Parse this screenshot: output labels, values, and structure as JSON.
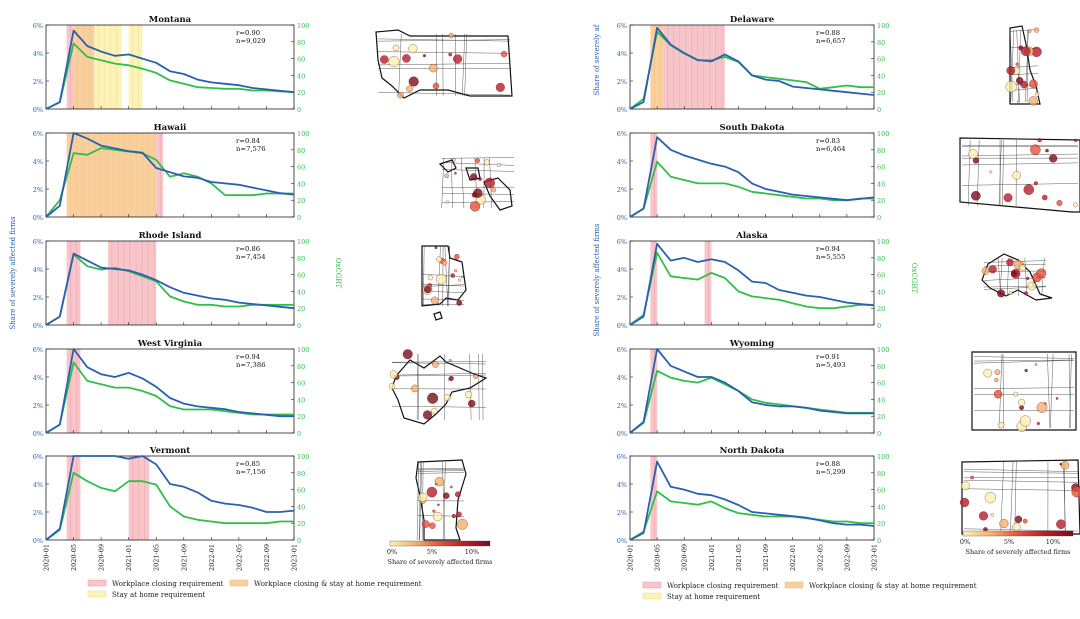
{
  "legend": {
    "closing": "Workplace closing requirement",
    "both": "Workplace closing & stay at home requirement",
    "stay": "Stay at home requirement",
    "colors": {
      "closing": "#f7c6cb",
      "both": "#f9cf9e",
      "stay": "#fbf3b8",
      "closing_line": "#e05b6a"
    }
  },
  "colorbar": {
    "title": "Share of severely affected firms",
    "ticks": [
      "0%",
      "5%",
      "10%"
    ],
    "colors": [
      "#fdf3b0",
      "#f4b26a",
      "#e5533a",
      "#b81d2a",
      "#7a0c1c"
    ]
  },
  "axis_titles": {
    "left_ylabel": "Share of severely affected firms",
    "right_ylabel": "OxCGRT",
    "left_ylabel_cut": "Share of severely af"
  },
  "series_colors": {
    "firms": "#2a5fb2",
    "oxcgrt": "#2fbf4a"
  },
  "chart_data": [
    {
      "type": "line",
      "title": "Montana",
      "r": "r=0.90",
      "n": "n=9,029",
      "x": [
        "2020-01",
        "2020-03",
        "2020-05",
        "2020-07",
        "2020-09",
        "2020-11",
        "2021-01",
        "2021-03",
        "2021-05",
        "2021-07",
        "2021-09",
        "2021-11",
        "2022-01",
        "2022-03",
        "2022-05",
        "2022-07",
        "2022-09",
        "2022-11",
        "2023-01"
      ],
      "ylim_left": [
        0,
        6
      ],
      "ylim_right": [
        0,
        100
      ],
      "series": [
        {
          "values": [
            0,
            0.5,
            5.6,
            4.5,
            4.1,
            3.8,
            3.9,
            3.6,
            3.3,
            2.7,
            2.5,
            2.1,
            1.9,
            1.8,
            1.7,
            1.5,
            1.4,
            1.3,
            1.2
          ]
        },
        {
          "values": [
            0,
            8,
            78,
            62,
            58,
            54,
            52,
            48,
            43,
            34,
            30,
            26,
            25,
            24,
            24,
            22,
            22,
            21,
            20
          ]
        }
      ],
      "shading": [
        {
          "type": "closing",
          "start": "2020-04",
          "end": "2020-05"
        },
        {
          "type": "both",
          "start": "2020-05",
          "end": "2020-08"
        },
        {
          "type": "stay",
          "start": "2020-08",
          "end": "2020-12"
        },
        {
          "type": "stay",
          "start": "2021-01",
          "end": "2021-03"
        }
      ]
    },
    {
      "type": "line",
      "title": "Hawaii",
      "r": "r=0.84",
      "n": "n=7,576",
      "x": [
        "2020-01",
        "2020-03",
        "2020-05",
        "2020-07",
        "2020-09",
        "2020-11",
        "2021-01",
        "2021-03",
        "2021-05",
        "2021-07",
        "2021-09",
        "2021-11",
        "2022-01",
        "2022-03",
        "2022-05",
        "2022-07",
        "2022-09",
        "2022-11",
        "2023-01"
      ],
      "ylim_left": [
        0,
        6
      ],
      "ylim_right": [
        0,
        100
      ],
      "series": [
        {
          "values": [
            0,
            0.8,
            6.0,
            5.6,
            5.1,
            4.9,
            4.7,
            4.6,
            3.5,
            3.2,
            2.9,
            2.8,
            2.5,
            2.4,
            2.3,
            2.1,
            1.9,
            1.7,
            1.6
          ]
        },
        {
          "values": [
            0,
            20,
            76,
            74,
            82,
            80,
            78,
            76,
            68,
            48,
            52,
            48,
            40,
            26,
            26,
            26,
            28,
            28,
            28
          ]
        }
      ],
      "shading": [
        {
          "type": "both",
          "start": "2020-04",
          "end": "2021-05"
        },
        {
          "type": "closing",
          "start": "2021-05",
          "end": "2021-06"
        }
      ]
    },
    {
      "type": "line",
      "title": "Rhode Island",
      "r": "r=0.86",
      "n": "n=7,454",
      "x": [
        "2020-01",
        "2020-03",
        "2020-05",
        "2020-07",
        "2020-09",
        "2020-11",
        "2021-01",
        "2021-03",
        "2021-05",
        "2021-07",
        "2021-09",
        "2021-11",
        "2022-01",
        "2022-03",
        "2022-05",
        "2022-07",
        "2022-09",
        "2022-11",
        "2023-01"
      ],
      "ylim_left": [
        0,
        6
      ],
      "ylim_right": [
        0,
        100
      ],
      "series": [
        {
          "values": [
            0,
            0.6,
            5.1,
            4.6,
            4.1,
            4.0,
            3.9,
            3.6,
            3.2,
            2.7,
            2.3,
            2.1,
            1.9,
            1.8,
            1.6,
            1.5,
            1.4,
            1.3,
            1.2
          ]
        },
        {
          "values": [
            0,
            10,
            84,
            70,
            66,
            68,
            64,
            58,
            52,
            34,
            28,
            24,
            24,
            22,
            22,
            24,
            24,
            24,
            24
          ]
        }
      ],
      "shading": [
        {
          "type": "closing",
          "start": "2020-04",
          "end": "2020-06"
        },
        {
          "type": "closing",
          "start": "2020-10",
          "end": "2021-05"
        }
      ]
    },
    {
      "type": "line",
      "title": "West Virginia",
      "r": "r=0.94",
      "n": "n=7,386",
      "x": [
        "2020-01",
        "2020-03",
        "2020-05",
        "2020-07",
        "2020-09",
        "2020-11",
        "2021-01",
        "2021-03",
        "2021-05",
        "2021-07",
        "2021-09",
        "2021-11",
        "2022-01",
        "2022-03",
        "2022-05",
        "2022-07",
        "2022-09",
        "2022-11",
        "2023-01"
      ],
      "ylim_left": [
        0,
        6
      ],
      "ylim_right": [
        0,
        100
      ],
      "series": [
        {
          "values": [
            0,
            0.6,
            6.0,
            4.7,
            4.2,
            4.0,
            4.3,
            3.9,
            3.3,
            2.5,
            2.1,
            1.9,
            1.8,
            1.7,
            1.5,
            1.4,
            1.3,
            1.2,
            1.2
          ]
        },
        {
          "values": [
            0,
            10,
            84,
            62,
            58,
            54,
            54,
            50,
            44,
            32,
            28,
            28,
            28,
            26,
            24,
            22,
            22,
            22,
            22
          ]
        }
      ],
      "shading": [
        {
          "type": "closing",
          "start": "2020-04",
          "end": "2020-06"
        }
      ]
    },
    {
      "type": "line",
      "title": "Vermont",
      "r": "r=0.85",
      "n": "n=7,156",
      "x": [
        "2020-01",
        "2020-03",
        "2020-05",
        "2020-07",
        "2020-09",
        "2020-11",
        "2021-01",
        "2021-03",
        "2021-05",
        "2021-07",
        "2021-09",
        "2021-11",
        "2022-01",
        "2022-03",
        "2022-05",
        "2022-07",
        "2022-09",
        "2022-11",
        "2023-01"
      ],
      "ylim_left": [
        0,
        6
      ],
      "ylim_right": [
        0,
        100
      ],
      "series": [
        {
          "values": [
            0,
            0.8,
            6.0,
            6.0,
            6.0,
            6.0,
            5.8,
            6.0,
            5.4,
            4.0,
            3.8,
            3.4,
            2.8,
            2.6,
            2.5,
            2.3,
            2.0,
            2.0,
            2.1
          ]
        },
        {
          "values": [
            0,
            12,
            80,
            70,
            62,
            58,
            70,
            70,
            66,
            40,
            28,
            24,
            22,
            20,
            20,
            20,
            20,
            22,
            22
          ]
        }
      ],
      "shading": [
        {
          "type": "closing",
          "start": "2020-04",
          "end": "2020-06"
        },
        {
          "type": "closing",
          "start": "2021-01",
          "end": "2021-04"
        }
      ]
    },
    {
      "type": "line",
      "title": "Delaware",
      "r": "r=0.88",
      "n": "n=6,657",
      "x": [
        "2020-01",
        "2020-03",
        "2020-05",
        "2020-07",
        "2020-09",
        "2020-11",
        "2021-01",
        "2021-03",
        "2021-05",
        "2021-07",
        "2021-09",
        "2021-11",
        "2022-01",
        "2022-03",
        "2022-05",
        "2022-07",
        "2022-09",
        "2022-11",
        "2023-01"
      ],
      "ylim_left": [
        0,
        6
      ],
      "ylim_right": [
        0,
        100
      ],
      "series": [
        {
          "values": [
            0,
            0.5,
            5.8,
            4.6,
            4.0,
            3.5,
            3.4,
            3.9,
            3.4,
            2.4,
            2.1,
            2.0,
            1.6,
            1.5,
            1.4,
            1.3,
            1.2,
            1.1,
            1.0
          ]
        },
        {
          "values": [
            0,
            12,
            92,
            76,
            66,
            58,
            58,
            62,
            56,
            40,
            38,
            36,
            34,
            32,
            24,
            26,
            28,
            26,
            26
          ]
        }
      ],
      "shading": [
        {
          "type": "both",
          "start": "2020-04",
          "end": "2020-06"
        },
        {
          "type": "closing",
          "start": "2020-06",
          "end": "2021-03"
        }
      ]
    },
    {
      "type": "line",
      "title": "South Dakota",
      "r": "r=0.83",
      "n": "n=6,464",
      "x": [
        "2020-01",
        "2020-03",
        "2020-05",
        "2020-07",
        "2020-09",
        "2020-11",
        "2021-01",
        "2021-03",
        "2021-05",
        "2021-07",
        "2021-09",
        "2021-11",
        "2022-01",
        "2022-03",
        "2022-05",
        "2022-07",
        "2022-09",
        "2022-11",
        "2023-01"
      ],
      "ylim_left": [
        0,
        6
      ],
      "ylim_right": [
        0,
        100
      ],
      "series": [
        {
          "values": [
            0,
            0.6,
            5.7,
            4.8,
            4.4,
            4.1,
            3.8,
            3.6,
            3.2,
            2.4,
            2.0,
            1.8,
            1.6,
            1.5,
            1.4,
            1.3,
            1.2,
            1.3,
            1.4
          ]
        },
        {
          "values": [
            0,
            10,
            66,
            48,
            44,
            40,
            40,
            40,
            36,
            30,
            28,
            26,
            24,
            22,
            22,
            20,
            20,
            22,
            22
          ]
        }
      ],
      "shading": [
        {
          "type": "closing",
          "start": "2020-04",
          "end": "2020-05"
        }
      ]
    },
    {
      "type": "line",
      "title": "Alaska",
      "r": "r=0.94",
      "n": "n=5,555",
      "x": [
        "2020-01",
        "2020-03",
        "2020-05",
        "2020-07",
        "2020-09",
        "2020-11",
        "2021-01",
        "2021-03",
        "2021-05",
        "2021-07",
        "2021-09",
        "2021-11",
        "2022-01",
        "2022-03",
        "2022-05",
        "2022-07",
        "2022-09",
        "2022-11",
        "2023-01"
      ],
      "ylim_left": [
        0,
        6
      ],
      "ylim_right": [
        0,
        100
      ],
      "series": [
        {
          "values": [
            0,
            0.6,
            5.8,
            4.6,
            4.8,
            4.5,
            4.7,
            4.5,
            3.9,
            3.1,
            3.0,
            2.5,
            2.3,
            2.1,
            2.0,
            1.8,
            1.6,
            1.5,
            1.4
          ]
        },
        {
          "values": [
            0,
            12,
            86,
            58,
            56,
            54,
            62,
            56,
            40,
            34,
            32,
            30,
            26,
            22,
            20,
            20,
            22,
            24,
            24
          ]
        }
      ],
      "shading": [
        {
          "type": "closing",
          "start": "2020-04",
          "end": "2020-05"
        },
        {
          "type": "closing",
          "start": "2020-12",
          "end": "2021-01"
        }
      ]
    },
    {
      "type": "line",
      "title": "Wyoming",
      "r": "r=0.91",
      "n": "n=5,493",
      "x": [
        "2020-01",
        "2020-03",
        "2020-05",
        "2020-07",
        "2020-09",
        "2020-11",
        "2021-01",
        "2021-03",
        "2021-05",
        "2021-07",
        "2021-09",
        "2021-11",
        "2022-01",
        "2022-03",
        "2022-05",
        "2022-07",
        "2022-09",
        "2022-11",
        "2023-01"
      ],
      "ylim_left": [
        0,
        6
      ],
      "ylim_right": [
        0,
        100
      ],
      "series": [
        {
          "values": [
            0,
            0.8,
            6.0,
            4.8,
            4.4,
            4.0,
            4.0,
            3.6,
            3.0,
            2.2,
            2.0,
            1.9,
            1.9,
            1.8,
            1.6,
            1.5,
            1.4,
            1.4,
            1.4
          ]
        },
        {
          "values": [
            0,
            12,
            74,
            66,
            62,
            60,
            66,
            58,
            50,
            40,
            36,
            34,
            32,
            30,
            28,
            26,
            24,
            24,
            24
          ]
        }
      ],
      "shading": [
        {
          "type": "closing",
          "start": "2020-04",
          "end": "2020-05"
        }
      ]
    },
    {
      "type": "line",
      "title": "North Dakota",
      "r": "r=0.88",
      "n": "n=5,299",
      "x": [
        "2020-01",
        "2020-03",
        "2020-05",
        "2020-07",
        "2020-09",
        "2020-11",
        "2021-01",
        "2021-03",
        "2021-05",
        "2021-07",
        "2021-09",
        "2021-11",
        "2022-01",
        "2022-03",
        "2022-05",
        "2022-07",
        "2022-09",
        "2022-11",
        "2023-01"
      ],
      "ylim_left": [
        0,
        6
      ],
      "ylim_right": [
        0,
        100
      ],
      "series": [
        {
          "values": [
            0,
            0.5,
            5.6,
            3.8,
            3.6,
            3.3,
            3.2,
            2.9,
            2.5,
            2.0,
            1.9,
            1.8,
            1.7,
            1.6,
            1.4,
            1.2,
            1.1,
            1.1,
            1.0
          ]
        },
        {
          "values": [
            0,
            10,
            58,
            46,
            44,
            42,
            46,
            38,
            32,
            30,
            28,
            28,
            28,
            26,
            24,
            22,
            22,
            20,
            20
          ]
        }
      ],
      "shading": [
        {
          "type": "closing",
          "start": "2020-04",
          "end": "2020-05"
        }
      ]
    }
  ],
  "x_tick_labels": [
    "2020-01",
    "2020-05",
    "2020-09",
    "2021-01",
    "2021-05",
    "2021-09",
    "2022-01",
    "2022-05",
    "2022-09",
    "2023-01"
  ],
  "left_ticks": [
    "0%",
    "2%",
    "4%",
    "6%"
  ],
  "right_ticks": [
    "0",
    "20",
    "40",
    "60",
    "80",
    "100"
  ]
}
